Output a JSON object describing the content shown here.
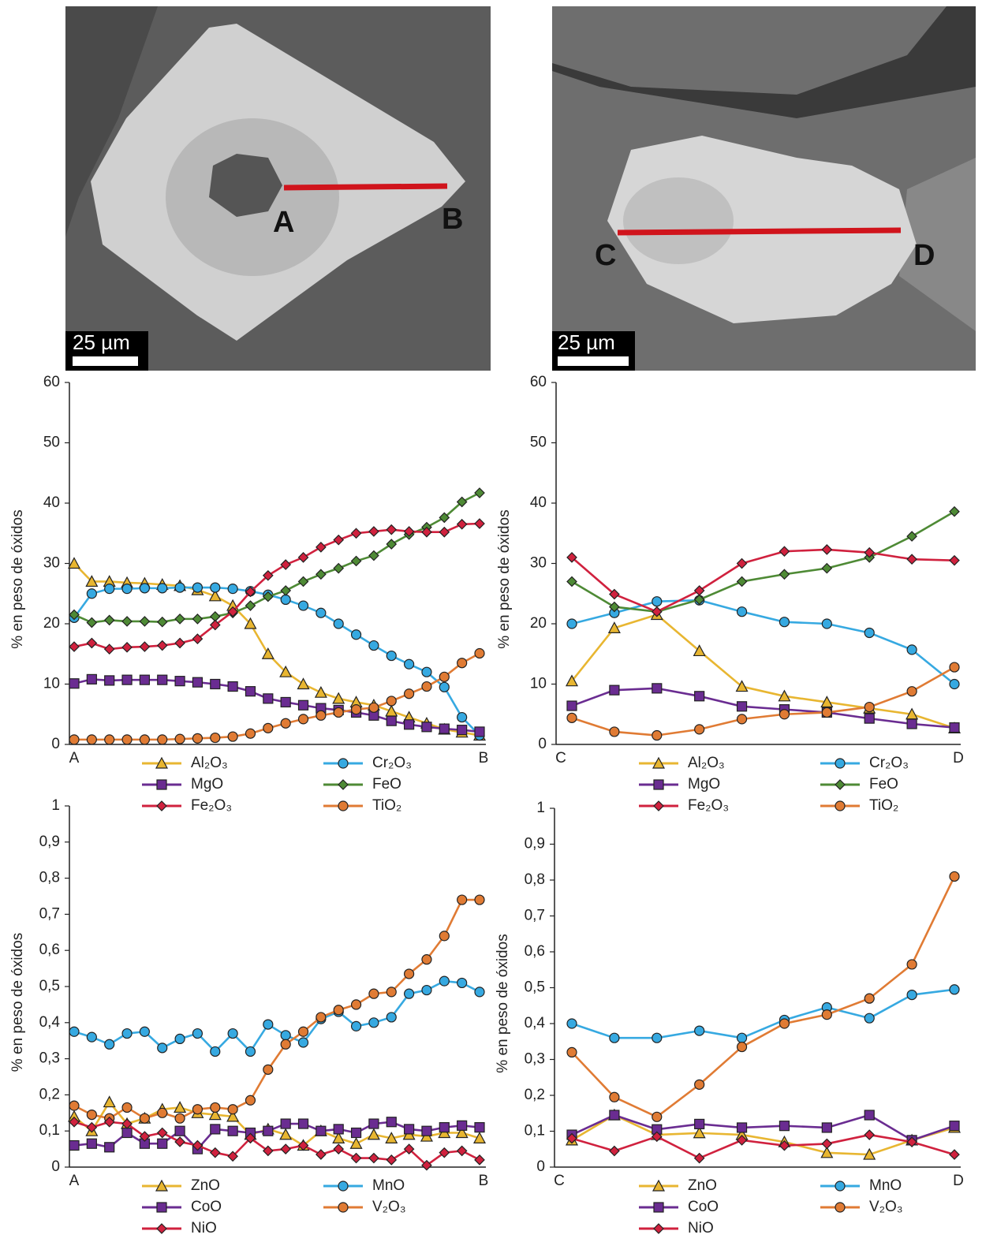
{
  "micrographs": [
    {
      "labels": [
        "A",
        "B"
      ],
      "scale_bar": "25 µm"
    },
    {
      "labels": [
        "C",
        "D"
      ],
      "scale_bar": "25 µm"
    }
  ],
  "chart_data": [
    {
      "type": "line",
      "y_label": "% en peso de óxidos",
      "x_labels": [
        "A",
        "B"
      ],
      "ylim": [
        0,
        60
      ],
      "yticks": [
        0,
        10,
        20,
        30,
        40,
        50,
        60
      ],
      "series": [
        {
          "name": "Al₂O₃",
          "color": "#e8b631",
          "marker": "triangle",
          "values": [
            30,
            27,
            27,
            26.8,
            26.7,
            26.5,
            26.3,
            25.6,
            24.6,
            23,
            20,
            15,
            12,
            10,
            8.6,
            7.6,
            7,
            6.5,
            5.5,
            4.5,
            3.5,
            2.5,
            2,
            1.5
          ]
        },
        {
          "name": "Cr₂O₃",
          "color": "#36a9e1",
          "marker": "circle",
          "values": [
            21,
            25,
            25.8,
            25.8,
            25.9,
            25.9,
            26,
            26,
            26,
            25.8,
            25.4,
            24.8,
            24,
            23,
            21.8,
            20,
            18.2,
            16.4,
            14.7,
            13.3,
            12,
            9.5,
            4.5,
            1.5
          ]
        },
        {
          "name": "MgO",
          "color": "#6a2c91",
          "marker": "square",
          "values": [
            10.1,
            10.8,
            10.6,
            10.7,
            10.7,
            10.7,
            10.5,
            10.3,
            10,
            9.6,
            8.8,
            7.6,
            7,
            6.5,
            6,
            5.7,
            5.3,
            4.8,
            3.9,
            3.3,
            2.9,
            2.6,
            2.4,
            2.1
          ]
        },
        {
          "name": "FeO",
          "color": "#4e8a35",
          "marker": "diamond",
          "values": [
            21.5,
            20.2,
            20.6,
            20.4,
            20.4,
            20.3,
            20.8,
            20.8,
            21.2,
            21.8,
            23,
            24.5,
            25.5,
            27,
            28.2,
            29.2,
            30.4,
            31.3,
            33.2,
            34.8,
            36,
            37.6,
            40.2,
            41.7
          ]
        },
        {
          "name": "Fe₂O₃",
          "color": "#d0213e",
          "marker": "diamond",
          "values": [
            16.2,
            16.8,
            15.8,
            16.1,
            16.2,
            16.4,
            16.8,
            17.5,
            19.8,
            22,
            25.3,
            28,
            29.8,
            31,
            32.7,
            33.9,
            35,
            35.3,
            35.6,
            35.3,
            35.2,
            35.2,
            36.5,
            36.6
          ]
        },
        {
          "name": "TiO₂",
          "color": "#e07b34",
          "marker": "circle",
          "values": [
            0.8,
            0.8,
            0.8,
            0.8,
            0.8,
            0.8,
            0.9,
            1,
            1.1,
            1.3,
            1.8,
            2.7,
            3.5,
            4.2,
            4.8,
            5.3,
            5.8,
            6.1,
            7.2,
            8.4,
            9.6,
            11.2,
            13.5,
            15.1
          ]
        }
      ]
    },
    {
      "type": "line",
      "y_label": "% en peso de óxidos",
      "x_labels": [
        "C",
        "D"
      ],
      "ylim": [
        0,
        60
      ],
      "yticks": [
        0,
        10,
        20,
        30,
        40,
        50,
        60
      ],
      "series": [
        {
          "name": "Al₂O₃",
          "color": "#e8b631",
          "marker": "triangle",
          "values": [
            10.5,
            19.3,
            21.5,
            15.5,
            9.6,
            8,
            7,
            6,
            5,
            2.7
          ]
        },
        {
          "name": "Cr₂O₃",
          "color": "#36a9e1",
          "marker": "circle",
          "values": [
            20,
            21.8,
            23.7,
            23.9,
            22,
            20.3,
            20,
            18.5,
            15.7,
            10
          ]
        },
        {
          "name": "MgO",
          "color": "#6a2c91",
          "marker": "square",
          "values": [
            6.4,
            9,
            9.3,
            8,
            6.3,
            5.8,
            5.3,
            4.3,
            3.4,
            2.8
          ]
        },
        {
          "name": "FeO",
          "color": "#4e8a35",
          "marker": "diamond",
          "values": [
            27,
            22.8,
            22,
            24,
            27,
            28.2,
            29.2,
            31,
            34.5,
            38.6
          ]
        },
        {
          "name": "Fe₂O₃",
          "color": "#d0213e",
          "marker": "diamond",
          "values": [
            31,
            24.9,
            22,
            25.5,
            30,
            32,
            32.3,
            31.8,
            30.7,
            30.5
          ]
        },
        {
          "name": "TiO₂",
          "color": "#e07b34",
          "marker": "circle",
          "values": [
            4.4,
            2.1,
            1.5,
            2.5,
            4.2,
            5,
            5.3,
            6.2,
            8.8,
            12.8
          ]
        }
      ]
    },
    {
      "type": "line",
      "y_label": "% en peso de óxidos",
      "x_labels": [
        "A",
        "B"
      ],
      "ylim": [
        0,
        1
      ],
      "yticks": [
        0,
        {
          "value": 0.1,
          "label": "0,1"
        },
        {
          "value": 0.2,
          "label": "0,2"
        },
        {
          "value": 0.3,
          "label": "0,3"
        },
        {
          "value": 0.4,
          "label": "0,4"
        },
        {
          "value": 0.5,
          "label": "0,5"
        },
        {
          "value": 0.6,
          "label": "0,6"
        },
        {
          "value": 0.7,
          "label": "0,7"
        },
        {
          "value": 0.8,
          "label": "0,8"
        },
        {
          "value": 0.9,
          "label": "0,9"
        },
        1
      ],
      "series": [
        {
          "name": "ZnO",
          "color": "#e8b631",
          "marker": "triangle",
          "values": [
            0.14,
            0.1,
            0.18,
            0.12,
            0.135,
            0.16,
            0.165,
            0.15,
            0.145,
            0.14,
            0.09,
            0.105,
            0.09,
            0.06,
            0.1,
            0.08,
            0.065,
            0.09,
            0.08,
            0.09,
            0.085,
            0.095,
            0.095,
            0.08
          ]
        },
        {
          "name": "MnO",
          "color": "#36a9e1",
          "marker": "circle",
          "values": [
            0.375,
            0.36,
            0.34,
            0.37,
            0.375,
            0.33,
            0.355,
            0.37,
            0.32,
            0.37,
            0.32,
            0.395,
            0.365,
            0.345,
            0.41,
            0.43,
            0.39,
            0.4,
            0.415,
            0.48,
            0.49,
            0.515,
            0.51,
            0.485
          ]
        },
        {
          "name": "CoO",
          "color": "#6a2c91",
          "marker": "square",
          "values": [
            0.06,
            0.065,
            0.055,
            0.095,
            0.065,
            0.065,
            0.1,
            0.05,
            0.105,
            0.1,
            0.095,
            0.1,
            0.12,
            0.12,
            0.1,
            0.105,
            0.095,
            0.12,
            0.125,
            0.105,
            0.1,
            0.11,
            0.115,
            0.11
          ]
        },
        {
          "name": "V₂O₃",
          "color": "#e07b34",
          "marker": "circle",
          "values": [
            0.17,
            0.145,
            0.135,
            0.165,
            0.135,
            0.15,
            0.135,
            0.16,
            0.165,
            0.16,
            0.185,
            0.27,
            0.34,
            0.375,
            0.415,
            0.435,
            0.45,
            0.48,
            0.485,
            0.535,
            0.575,
            0.64,
            0.74,
            0.74
          ]
        },
        {
          "name": "NiO",
          "color": "#d0213e",
          "marker": "diamond",
          "values": [
            0.125,
            0.11,
            0.125,
            0.12,
            0.085,
            0.095,
            0.07,
            0.06,
            0.04,
            0.03,
            0.08,
            0.045,
            0.05,
            0.06,
            0.035,
            0.05,
            0.025,
            0.025,
            0.02,
            0.05,
            0.005,
            0.04,
            0.045,
            0.02
          ]
        }
      ]
    },
    {
      "type": "line",
      "y_label": "% en peso de óxidos",
      "x_labels": [
        "C",
        "D"
      ],
      "ylim": [
        0,
        1
      ],
      "yticks": [
        0,
        {
          "value": 0.1,
          "label": "0,1"
        },
        {
          "value": 0.2,
          "label": "0,2"
        },
        {
          "value": 0.3,
          "label": "0,3"
        },
        {
          "value": 0.4,
          "label": "0,4"
        },
        {
          "value": 0.5,
          "label": "0,5"
        },
        {
          "value": 0.6,
          "label": "0,6"
        },
        {
          "value": 0.7,
          "label": "0,7"
        },
        {
          "value": 0.8,
          "label": "0,8"
        },
        {
          "value": 0.9,
          "label": "0,9"
        },
        1
      ],
      "series": [
        {
          "name": "ZnO",
          "color": "#e8b631",
          "marker": "triangle",
          "values": [
            0.075,
            0.145,
            0.09,
            0.095,
            0.09,
            0.07,
            0.04,
            0.035,
            0.075,
            0.11
          ]
        },
        {
          "name": "MnO",
          "color": "#36a9e1",
          "marker": "circle",
          "values": [
            0.4,
            0.36,
            0.36,
            0.38,
            0.36,
            0.41,
            0.445,
            0.415,
            0.48,
            0.495
          ]
        },
        {
          "name": "CoO",
          "color": "#6a2c91",
          "marker": "square",
          "values": [
            0.09,
            0.145,
            0.105,
            0.12,
            0.11,
            0.115,
            0.11,
            0.145,
            0.075,
            0.115
          ]
        },
        {
          "name": "V₂O₃",
          "color": "#e07b34",
          "marker": "circle",
          "values": [
            0.32,
            0.195,
            0.14,
            0.23,
            0.335,
            0.4,
            0.425,
            0.47,
            0.565,
            0.81
          ]
        },
        {
          "name": "NiO",
          "color": "#d0213e",
          "marker": "diamond",
          "values": [
            0.08,
            0.045,
            0.085,
            0.025,
            0.075,
            0.06,
            0.065,
            0.09,
            0.07,
            0.035
          ]
        }
      ]
    }
  ]
}
